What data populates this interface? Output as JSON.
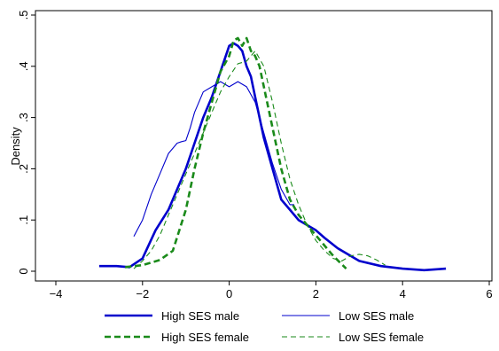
{
  "chart_data": {
    "type": "line",
    "title": "",
    "xlabel": "",
    "ylabel": "Density",
    "xlim": [
      -4,
      6
    ],
    "ylim": [
      0,
      0.5
    ],
    "xticks": [
      -4,
      -2,
      0,
      2,
      4,
      6
    ],
    "xtick_labels": [
      "−4",
      "−2",
      "0",
      "2",
      "4",
      "6"
    ],
    "yticks": [
      0,
      0.1,
      0.2,
      0.3,
      0.4,
      0.5
    ],
    "ytick_labels": [
      "0",
      ".1",
      ".2",
      ".3",
      ".4",
      ".5"
    ],
    "grid": false,
    "legend_position": "bottom",
    "series": [
      {
        "name": "High SES male",
        "color": "#0000cc",
        "style": "solid-thick",
        "x": [
          -3.0,
          -2.6,
          -2.3,
          -2.0,
          -1.7,
          -1.4,
          -1.2,
          -1.0,
          -0.8,
          -0.6,
          -0.4,
          -0.2,
          0.0,
          0.1,
          0.2,
          0.3,
          0.4,
          0.5,
          0.6,
          0.8,
          1.0,
          1.2,
          1.4,
          1.6,
          1.8,
          2.0,
          2.2,
          2.5,
          3.0,
          3.5,
          4.0,
          4.5,
          5.0
        ],
        "y": [
          0.01,
          0.01,
          0.008,
          0.025,
          0.08,
          0.12,
          0.16,
          0.2,
          0.25,
          0.3,
          0.34,
          0.39,
          0.44,
          0.445,
          0.44,
          0.43,
          0.4,
          0.38,
          0.34,
          0.26,
          0.2,
          0.14,
          0.12,
          0.1,
          0.09,
          0.08,
          0.065,
          0.045,
          0.02,
          0.01,
          0.005,
          0.002,
          0.005
        ]
      },
      {
        "name": "Low SES male",
        "color": "#0000cc",
        "style": "solid-thin",
        "x": [
          -2.2,
          -2.0,
          -1.8,
          -1.6,
          -1.4,
          -1.2,
          -1.1,
          -1.0,
          -0.9,
          -0.8,
          -0.6,
          -0.4,
          -0.2,
          0.0,
          0.2,
          0.4,
          0.6,
          0.8,
          1.0,
          1.2,
          1.4,
          1.5
        ],
        "y": [
          0.068,
          0.1,
          0.15,
          0.19,
          0.23,
          0.25,
          0.253,
          0.255,
          0.28,
          0.31,
          0.35,
          0.36,
          0.37,
          0.36,
          0.37,
          0.36,
          0.33,
          0.27,
          0.21,
          0.16,
          0.13,
          0.13
        ]
      },
      {
        "name": "High SES female",
        "color": "#1a8a1a",
        "style": "dash-thick",
        "x": [
          -2.4,
          -2.0,
          -1.6,
          -1.3,
          -1.0,
          -0.8,
          -0.6,
          -0.4,
          -0.2,
          0.0,
          0.1,
          0.2,
          0.3,
          0.4,
          0.5,
          0.6,
          0.7,
          0.8,
          1.0,
          1.2,
          1.4,
          1.6,
          1.8,
          2.0,
          2.2,
          2.4,
          2.7
        ],
        "y": [
          0.008,
          0.012,
          0.022,
          0.04,
          0.12,
          0.2,
          0.27,
          0.33,
          0.39,
          0.42,
          0.45,
          0.455,
          0.44,
          0.455,
          0.43,
          0.42,
          0.4,
          0.36,
          0.28,
          0.2,
          0.14,
          0.11,
          0.09,
          0.07,
          0.05,
          0.03,
          0.005
        ]
      },
      {
        "name": "Low SES female",
        "color": "#1a8a1a",
        "style": "dash-thin",
        "x": [
          -2.2,
          -2.0,
          -1.8,
          -1.6,
          -1.4,
          -1.2,
          -1.0,
          -0.8,
          -0.6,
          -0.4,
          -0.2,
          0.0,
          0.2,
          0.4,
          0.6,
          0.8,
          1.0,
          1.2,
          1.4,
          1.6,
          1.8,
          2.0,
          2.2,
          2.4,
          2.6,
          2.8,
          3.0,
          3.2,
          3.4,
          3.6
        ],
        "y": [
          0.005,
          0.02,
          0.04,
          0.07,
          0.11,
          0.15,
          0.19,
          0.23,
          0.27,
          0.31,
          0.35,
          0.38,
          0.405,
          0.41,
          0.43,
          0.4,
          0.33,
          0.25,
          0.18,
          0.13,
          0.09,
          0.06,
          0.04,
          0.025,
          0.02,
          0.03,
          0.033,
          0.03,
          0.022,
          0.012
        ]
      }
    ]
  }
}
